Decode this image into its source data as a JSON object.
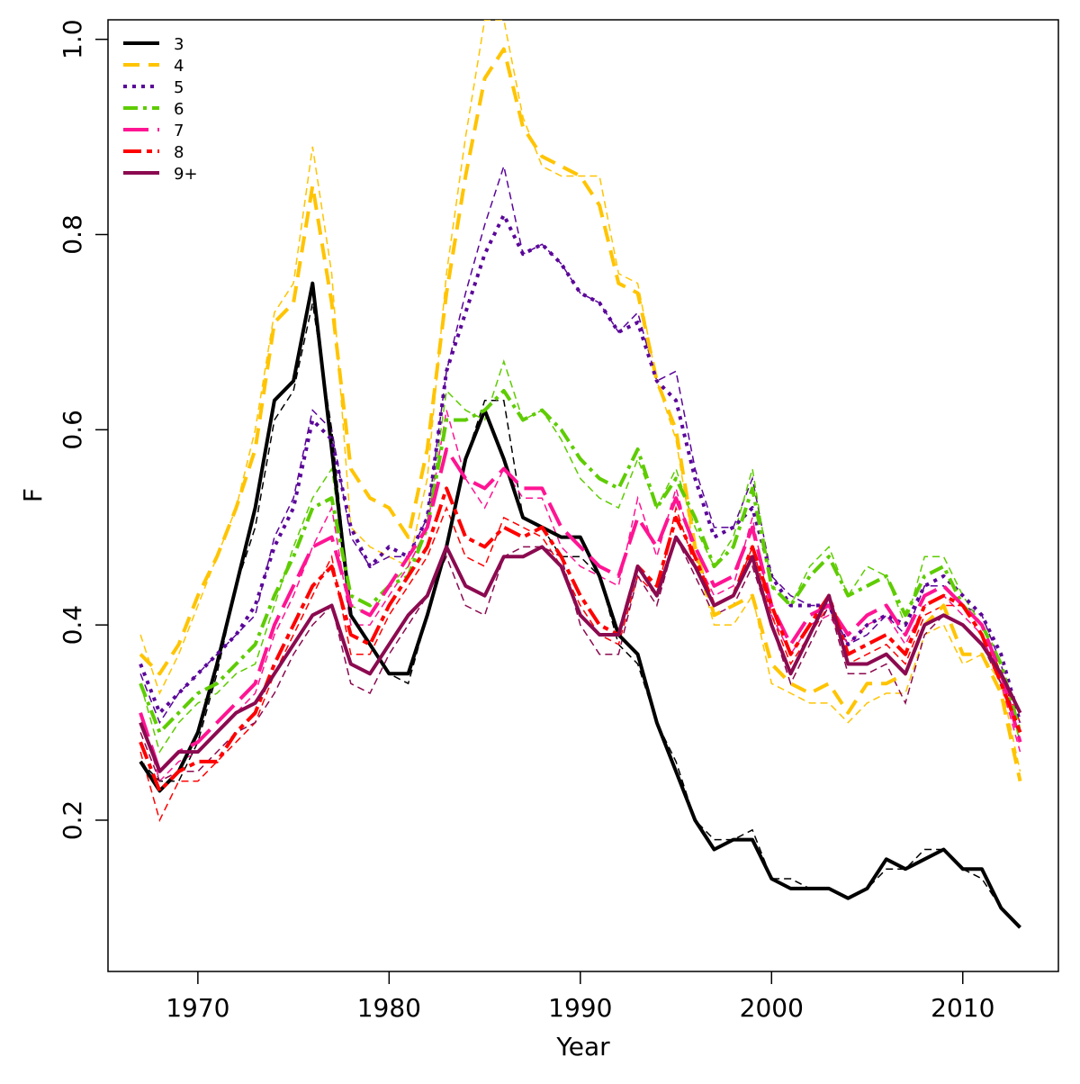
{
  "chart_data": {
    "type": "line",
    "xlabel": "Year",
    "ylabel": "F",
    "xlim": [
      1965.3,
      2015
    ],
    "ylim": [
      0.045,
      1.02
    ],
    "xticks": [
      1970,
      1980,
      1990,
      2000,
      2010
    ],
    "yticks": [
      0.2,
      0.4,
      0.6,
      0.8,
      1.0
    ],
    "ytick_labels": [
      "0.2",
      "0.4",
      "0.6",
      "0.8",
      "1.0"
    ],
    "legend_position": "top-left",
    "x": [
      1967,
      1968,
      1969,
      1970,
      1971,
      1972,
      1973,
      1974,
      1975,
      1976,
      1977,
      1978,
      1979,
      1980,
      1981,
      1982,
      1983,
      1984,
      1985,
      1986,
      1987,
      1988,
      1989,
      1990,
      1991,
      1992,
      1993,
      1994,
      1995,
      1996,
      1997,
      1998,
      1999,
      2000,
      2001,
      2002,
      2003,
      2004,
      2005,
      2006,
      2007,
      2008,
      2009,
      2010,
      2011,
      2012,
      2013
    ],
    "series": [
      {
        "name": "3",
        "color": "#000000",
        "dash": "",
        "values": [
          0.26,
          0.23,
          0.25,
          0.29,
          0.36,
          0.44,
          0.52,
          0.63,
          0.65,
          0.75,
          0.58,
          0.41,
          0.38,
          0.35,
          0.35,
          0.41,
          0.48,
          0.57,
          0.62,
          0.57,
          0.51,
          0.5,
          0.49,
          0.49,
          0.45,
          0.39,
          0.37,
          0.3,
          0.25,
          0.2,
          0.17,
          0.18,
          0.18,
          0.14,
          0.13,
          0.13,
          0.13,
          0.12,
          0.13,
          0.16,
          0.15,
          0.16,
          0.17,
          0.15,
          0.15,
          0.11,
          0.09
        ],
        "bound": [
          0.26,
          0.24,
          0.24,
          0.28,
          0.35,
          0.44,
          0.5,
          0.61,
          0.64,
          0.73,
          0.6,
          0.41,
          0.38,
          0.35,
          0.34,
          0.41,
          0.48,
          0.57,
          0.63,
          0.63,
          0.51,
          0.5,
          0.47,
          0.47,
          0.45,
          0.38,
          0.36,
          0.3,
          0.26,
          0.2,
          0.18,
          0.18,
          0.19,
          0.14,
          0.14,
          0.13,
          0.13,
          0.12,
          0.13,
          0.15,
          0.15,
          0.17,
          0.17,
          0.15,
          0.14,
          0.11,
          0.09
        ]
      },
      {
        "name": "4",
        "color": "#FFC400",
        "dash": "18,10",
        "values": [
          0.37,
          0.35,
          0.38,
          0.43,
          0.47,
          0.52,
          0.58,
          0.71,
          0.73,
          0.85,
          0.73,
          0.56,
          0.53,
          0.52,
          0.49,
          0.58,
          0.74,
          0.86,
          0.96,
          0.99,
          0.91,
          0.88,
          0.87,
          0.86,
          0.83,
          0.75,
          0.74,
          0.65,
          0.6,
          0.48,
          0.41,
          0.42,
          0.43,
          0.36,
          0.34,
          0.33,
          0.34,
          0.31,
          0.34,
          0.34,
          0.35,
          0.4,
          0.42,
          0.37,
          0.37,
          0.33,
          0.24
        ],
        "bound": [
          0.39,
          0.33,
          0.37,
          0.42,
          0.47,
          0.52,
          0.6,
          0.72,
          0.75,
          0.89,
          0.76,
          0.5,
          0.48,
          0.47,
          0.46,
          0.55,
          0.76,
          0.9,
          1.02,
          1.02,
          0.92,
          0.87,
          0.86,
          0.86,
          0.86,
          0.76,
          0.75,
          0.65,
          0.59,
          0.47,
          0.4,
          0.4,
          0.43,
          0.34,
          0.33,
          0.32,
          0.32,
          0.3,
          0.32,
          0.33,
          0.33,
          0.39,
          0.4,
          0.36,
          0.37,
          0.34,
          0.25
        ]
      },
      {
        "name": "5",
        "color": "#5A0599",
        "dash": "4,6",
        "values": [
          0.36,
          0.31,
          0.33,
          0.35,
          0.37,
          0.39,
          0.42,
          0.48,
          0.52,
          0.61,
          0.59,
          0.5,
          0.46,
          0.48,
          0.47,
          0.51,
          0.66,
          0.72,
          0.78,
          0.82,
          0.78,
          0.79,
          0.77,
          0.74,
          0.73,
          0.7,
          0.71,
          0.65,
          0.63,
          0.55,
          0.49,
          0.5,
          0.52,
          0.45,
          0.42,
          0.42,
          0.42,
          0.38,
          0.4,
          0.41,
          0.4,
          0.44,
          0.45,
          0.43,
          0.41,
          0.37,
          0.3
        ],
        "bound": [
          0.35,
          0.3,
          0.33,
          0.35,
          0.37,
          0.39,
          0.41,
          0.49,
          0.53,
          0.62,
          0.6,
          0.49,
          0.46,
          0.47,
          0.47,
          0.51,
          0.66,
          0.74,
          0.81,
          0.87,
          0.78,
          0.79,
          0.77,
          0.74,
          0.73,
          0.7,
          0.72,
          0.65,
          0.66,
          0.56,
          0.5,
          0.5,
          0.55,
          0.45,
          0.43,
          0.42,
          0.42,
          0.38,
          0.39,
          0.41,
          0.39,
          0.44,
          0.44,
          0.42,
          0.41,
          0.36,
          0.28
        ]
      },
      {
        "name": "6",
        "color": "#5ECC00",
        "dash": "16,6,4,6",
        "values": [
          0.34,
          0.29,
          0.31,
          0.33,
          0.34,
          0.36,
          0.38,
          0.43,
          0.47,
          0.52,
          0.53,
          0.43,
          0.42,
          0.44,
          0.45,
          0.5,
          0.61,
          0.61,
          0.62,
          0.64,
          0.61,
          0.62,
          0.6,
          0.57,
          0.55,
          0.54,
          0.58,
          0.52,
          0.55,
          0.51,
          0.46,
          0.48,
          0.54,
          0.44,
          0.42,
          0.45,
          0.47,
          0.43,
          0.44,
          0.45,
          0.41,
          0.45,
          0.46,
          0.42,
          0.4,
          0.36,
          0.29
        ],
        "bound": [
          0.34,
          0.27,
          0.3,
          0.32,
          0.33,
          0.35,
          0.36,
          0.42,
          0.48,
          0.53,
          0.56,
          0.42,
          0.41,
          0.44,
          0.46,
          0.5,
          0.64,
          0.62,
          0.61,
          0.67,
          0.61,
          0.62,
          0.59,
          0.55,
          0.53,
          0.52,
          0.57,
          0.52,
          0.56,
          0.5,
          0.46,
          0.49,
          0.56,
          0.44,
          0.42,
          0.46,
          0.48,
          0.43,
          0.46,
          0.45,
          0.4,
          0.47,
          0.47,
          0.43,
          0.4,
          0.35,
          0.28
        ]
      },
      {
        "name": "7",
        "color": "#FF1493",
        "dash": "28,10",
        "values": [
          0.31,
          0.25,
          0.27,
          0.28,
          0.3,
          0.32,
          0.34,
          0.4,
          0.44,
          0.48,
          0.49,
          0.42,
          0.41,
          0.44,
          0.47,
          0.5,
          0.58,
          0.55,
          0.54,
          0.56,
          0.54,
          0.54,
          0.5,
          0.48,
          0.46,
          0.45,
          0.51,
          0.48,
          0.53,
          0.48,
          0.44,
          0.45,
          0.5,
          0.42,
          0.38,
          0.41,
          0.42,
          0.39,
          0.41,
          0.42,
          0.39,
          0.43,
          0.44,
          0.42,
          0.4,
          0.35,
          0.28
        ],
        "bound": [
          0.31,
          0.24,
          0.26,
          0.27,
          0.29,
          0.31,
          0.33,
          0.39,
          0.43,
          0.48,
          0.52,
          0.4,
          0.4,
          0.43,
          0.46,
          0.5,
          0.62,
          0.55,
          0.52,
          0.56,
          0.53,
          0.53,
          0.48,
          0.46,
          0.45,
          0.44,
          0.53,
          0.47,
          0.54,
          0.47,
          0.43,
          0.44,
          0.51,
          0.41,
          0.37,
          0.4,
          0.41,
          0.38,
          0.4,
          0.41,
          0.38,
          0.42,
          0.43,
          0.41,
          0.39,
          0.34,
          0.27
        ]
      },
      {
        "name": "8",
        "color": "#FF0000",
        "dash": "20,6,6,6",
        "values": [
          0.28,
          0.23,
          0.25,
          0.26,
          0.26,
          0.29,
          0.31,
          0.36,
          0.4,
          0.44,
          0.46,
          0.39,
          0.38,
          0.42,
          0.45,
          0.48,
          0.54,
          0.49,
          0.48,
          0.5,
          0.49,
          0.5,
          0.47,
          0.43,
          0.4,
          0.39,
          0.46,
          0.44,
          0.51,
          0.47,
          0.42,
          0.43,
          0.48,
          0.42,
          0.37,
          0.4,
          0.43,
          0.37,
          0.38,
          0.39,
          0.37,
          0.42,
          0.43,
          0.42,
          0.39,
          0.34,
          0.29
        ],
        "bound": [
          0.27,
          0.2,
          0.24,
          0.24,
          0.26,
          0.28,
          0.3,
          0.35,
          0.39,
          0.43,
          0.47,
          0.37,
          0.37,
          0.41,
          0.44,
          0.47,
          0.52,
          0.47,
          0.46,
          0.51,
          0.5,
          0.49,
          0.46,
          0.42,
          0.39,
          0.38,
          0.45,
          0.43,
          0.52,
          0.46,
          0.42,
          0.43,
          0.48,
          0.41,
          0.36,
          0.39,
          0.42,
          0.36,
          0.37,
          0.38,
          0.36,
          0.41,
          0.42,
          0.42,
          0.4,
          0.35,
          0.3
        ]
      },
      {
        "name": "9+",
        "color": "#8B0A50",
        "dash": "",
        "values": [
          0.3,
          0.25,
          0.27,
          0.27,
          0.29,
          0.31,
          0.32,
          0.35,
          0.38,
          0.41,
          0.42,
          0.36,
          0.35,
          0.38,
          0.41,
          0.43,
          0.48,
          0.44,
          0.43,
          0.47,
          0.47,
          0.48,
          0.46,
          0.41,
          0.39,
          0.39,
          0.46,
          0.43,
          0.49,
          0.46,
          0.42,
          0.43,
          0.47,
          0.4,
          0.35,
          0.39,
          0.43,
          0.36,
          0.36,
          0.37,
          0.35,
          0.4,
          0.41,
          0.4,
          0.38,
          0.35,
          0.31
        ],
        "bound": [
          0.29,
          0.24,
          0.25,
          0.25,
          0.27,
          0.29,
          0.3,
          0.33,
          0.37,
          0.4,
          0.42,
          0.34,
          0.33,
          0.37,
          0.4,
          0.43,
          0.47,
          0.42,
          0.41,
          0.47,
          0.48,
          0.48,
          0.47,
          0.4,
          0.37,
          0.37,
          0.45,
          0.42,
          0.49,
          0.45,
          0.41,
          0.42,
          0.46,
          0.4,
          0.34,
          0.38,
          0.42,
          0.35,
          0.35,
          0.36,
          0.32,
          0.39,
          0.41,
          0.4,
          0.38,
          0.34,
          0.3
        ]
      }
    ]
  }
}
